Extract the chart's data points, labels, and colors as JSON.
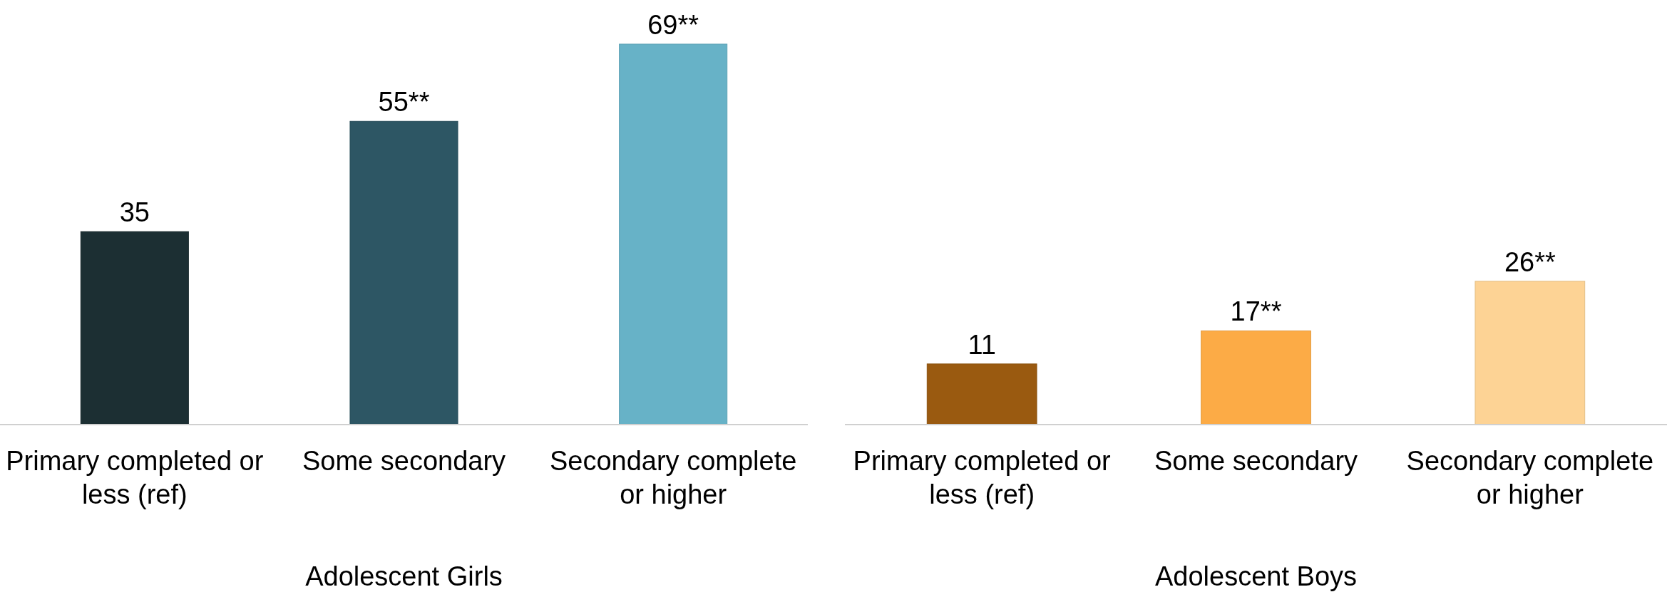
{
  "chart_data": [
    {
      "type": "bar",
      "xlabel": "Adolescent Girls",
      "categories": [
        "Primary completed or less (ref)",
        "Some secondary",
        "Secondary complete or higher"
      ],
      "values": [
        35,
        55,
        69
      ],
      "value_labels": [
        "35",
        "55**",
        "69**"
      ],
      "colors": [
        "#1c2f33",
        "#2d5664",
        "#67b2c7"
      ]
    },
    {
      "type": "bar",
      "xlabel": "Adolescent Boys",
      "categories": [
        "Primary completed or less (ref)",
        "Some secondary",
        "Secondary complete or higher"
      ],
      "values": [
        11,
        17,
        26
      ],
      "value_labels": [
        "11",
        "17**",
        "26**"
      ],
      "colors": [
        "#9a5a10",
        "#fcab46",
        "#fdd395"
      ]
    }
  ]
}
